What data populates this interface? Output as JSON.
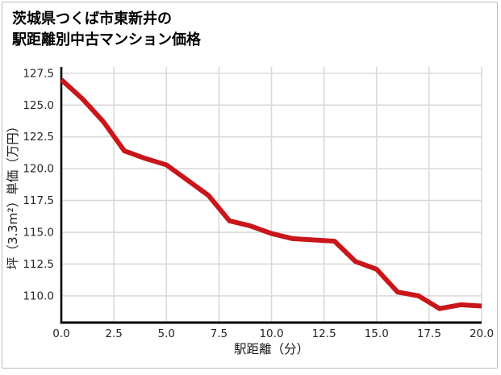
{
  "title": {
    "line1": "茨城県つくば市東新井の",
    "line2": "駅距離別中古マンション価格"
  },
  "chart_data": {
    "type": "line",
    "title": "茨城県つくば市東新井の駅距離別中古マンション価格",
    "xlabel": "駅距離（分）",
    "ylabel": "坪（3.3m²）単価（万円）",
    "x": [
      0,
      1,
      2,
      3,
      4,
      5,
      6,
      7,
      8,
      9,
      10,
      11,
      12,
      13,
      14,
      15,
      16,
      17,
      18,
      19,
      20
    ],
    "y": [
      127.0,
      125.5,
      123.7,
      121.4,
      120.8,
      120.3,
      119.1,
      117.9,
      115.9,
      115.5,
      114.9,
      114.5,
      114.4,
      114.3,
      112.7,
      112.1,
      110.3,
      110.0,
      109.0,
      109.3,
      109.2
    ],
    "xlim": [
      0,
      20
    ],
    "ylim": [
      107.9,
      128.0
    ],
    "xticks": {
      "values": [
        0,
        2.5,
        5,
        7.5,
        10,
        12.5,
        15,
        17.5,
        20
      ],
      "labels": [
        "0.0",
        "2.5",
        "5.0",
        "7.5",
        "10.0",
        "12.5",
        "15.0",
        "17.5",
        "20.0"
      ]
    },
    "yticks": {
      "values": [
        110.0,
        112.5,
        115.0,
        117.5,
        120.0,
        122.5,
        125.0,
        127.5
      ],
      "labels": [
        "110.0",
        "112.5",
        "115.0",
        "117.5",
        "120.0",
        "122.5",
        "125.0",
        "127.5"
      ]
    },
    "grid": true,
    "legend": false,
    "line_width": 6,
    "colors": {
      "line": "#c9161a",
      "grid": "#d9d9d9",
      "axis": "#000000",
      "tick_text": "#262626",
      "label_text": "#1a1a1a",
      "border": "#bcbcbc"
    }
  }
}
